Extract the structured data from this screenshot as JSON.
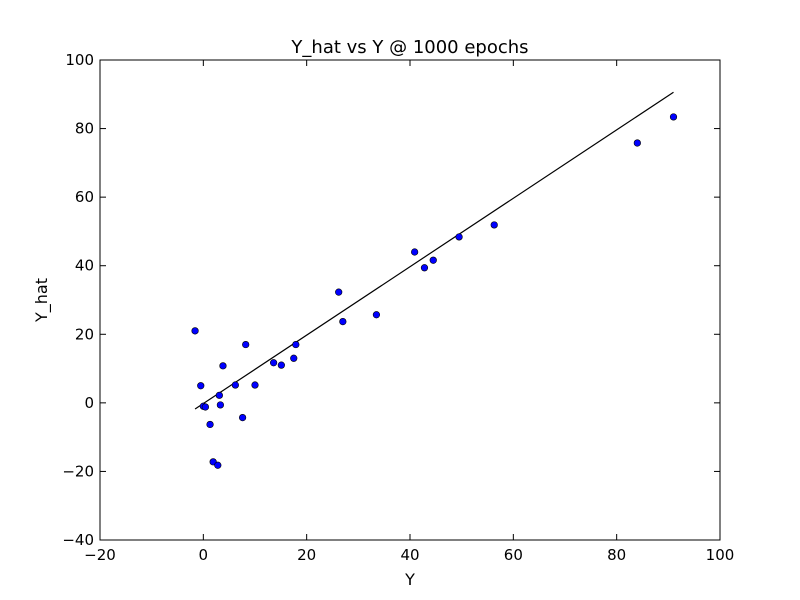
{
  "chart_data": {
    "type": "scatter",
    "title": "Y_hat vs Y @ 1000 epochs",
    "xlabel": "Y",
    "ylabel": "Y_hat",
    "xlim": [
      -20,
      100
    ],
    "ylim": [
      -40,
      100
    ],
    "xticks": [
      -20,
      0,
      20,
      40,
      60,
      80,
      100
    ],
    "yticks": [
      -40,
      -20,
      0,
      20,
      40,
      60,
      80,
      100
    ],
    "xtick_labels": [
      "−20",
      "0",
      "20",
      "40",
      "60",
      "80",
      "100"
    ],
    "ytick_labels": [
      "−40",
      "−20",
      "0",
      "20",
      "40",
      "60",
      "80",
      "100"
    ],
    "grid": false,
    "legend": "none",
    "colors": {
      "points": "#0000ff",
      "line": "#000000",
      "axes": "#000000"
    },
    "series": [
      {
        "type": "scatter",
        "x": [
          -1.6,
          -0.5,
          0.0,
          0.4,
          1.3,
          1.9,
          2.8,
          3.1,
          3.3,
          3.8,
          6.2,
          7.6,
          8.2,
          10.0,
          13.6,
          15.1,
          17.5,
          17.9,
          26.2,
          27.0,
          33.5,
          40.9,
          42.8,
          44.5,
          49.5,
          56.3,
          84.0,
          91.0
        ],
        "y": [
          21.0,
          5.0,
          -1.0,
          -1.2,
          -6.3,
          -17.2,
          -18.2,
          2.2,
          -0.6,
          10.8,
          5.2,
          -4.3,
          17.0,
          5.2,
          11.7,
          11.0,
          13.0,
          17.0,
          32.3,
          23.7,
          25.7,
          44.0,
          39.4,
          41.6,
          48.4,
          51.9,
          75.8,
          83.4
        ]
      },
      {
        "type": "line",
        "x": [
          -1.6,
          91.0
        ],
        "y": [
          -1.8,
          90.6
        ]
      }
    ]
  }
}
